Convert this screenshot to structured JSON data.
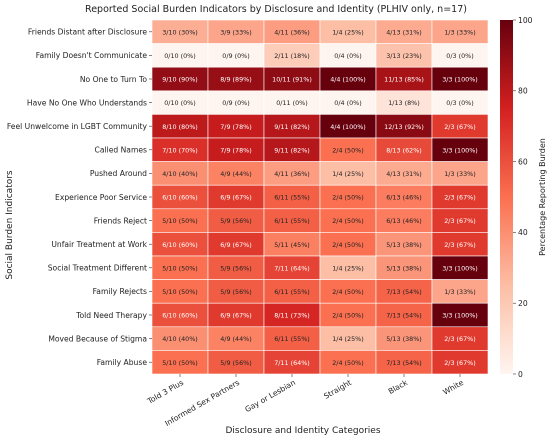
{
  "chart_data": {
    "type": "heatmap",
    "title": "Reported Social Burden Indicators by Disclosure and Identity (PLHIV only, n=17)",
    "xlabel": "Disclosure and Identity Categories",
    "ylabel": "Social Burden Indicators",
    "colorbar_label": "Percentage Reporting Burden",
    "colorbar_range": [
      0,
      100
    ],
    "colorbar_ticks": [
      "0",
      "20",
      "40",
      "60",
      "80",
      "100"
    ],
    "columns": [
      "Told 3 Plus",
      "Informed Sex Partners",
      "Gay or Lesbian",
      "Straight",
      "Black",
      "White"
    ],
    "rows": [
      "Friends Distant after Disclosure",
      "Family Doesn't Communicate",
      "No One to Turn To",
      "Have No One Who Understands",
      "Feel Unwelcome in LGBT Community",
      "Called Names",
      "Pushed Around",
      "Experience Poor Service",
      "Friends Reject",
      "Unfair Treatment at Work",
      "Social Treatment Different",
      "Family Rejects",
      "Told Need Therapy",
      "Moved Because of Stigma",
      "Family Abuse"
    ],
    "values": [
      [
        30,
        33,
        36,
        25,
        31,
        33
      ],
      [
        0,
        0,
        18,
        0,
        23,
        0
      ],
      [
        90,
        89,
        91,
        100,
        85,
        100
      ],
      [
        0,
        0,
        0,
        0,
        8,
        0
      ],
      [
        80,
        78,
        82,
        100,
        92,
        67
      ],
      [
        70,
        78,
        82,
        50,
        62,
        100
      ],
      [
        40,
        44,
        36,
        25,
        31,
        33
      ],
      [
        60,
        67,
        55,
        50,
        46,
        67
      ],
      [
        50,
        56,
        55,
        50,
        46,
        67
      ],
      [
        60,
        67,
        45,
        50,
        38,
        67
      ],
      [
        50,
        56,
        64,
        25,
        38,
        100
      ],
      [
        50,
        56,
        55,
        50,
        54,
        33
      ],
      [
        60,
        67,
        73,
        50,
        54,
        100
      ],
      [
        40,
        44,
        55,
        25,
        38,
        67
      ],
      [
        50,
        56,
        64,
        50,
        54,
        67
      ]
    ],
    "labels": [
      [
        "3/10 (30%)",
        "3/9 (33%)",
        "4/11 (36%)",
        "1/4 (25%)",
        "4/13 (31%)",
        "1/3 (33%)"
      ],
      [
        "0/10 (0%)",
        "0/9 (0%)",
        "2/11 (18%)",
        "0/4 (0%)",
        "3/13 (23%)",
        "0/3 (0%)"
      ],
      [
        "9/10 (90%)",
        "8/9 (89%)",
        "10/11 (91%)",
        "4/4 (100%)",
        "11/13 (85%)",
        "3/3 (100%)"
      ],
      [
        "0/10 (0%)",
        "0/9 (0%)",
        "0/11 (0%)",
        "0/4 (0%)",
        "1/13 (8%)",
        "0/3 (0%)"
      ],
      [
        "8/10 (80%)",
        "7/9 (78%)",
        "9/11 (82%)",
        "4/4 (100%)",
        "12/13 (92%)",
        "2/3 (67%)"
      ],
      [
        "7/10 (70%)",
        "7/9 (78%)",
        "9/11 (82%)",
        "2/4 (50%)",
        "8/13 (62%)",
        "3/3 (100%)"
      ],
      [
        "4/10 (40%)",
        "4/9 (44%)",
        "4/11 (36%)",
        "1/4 (25%)",
        "4/13 (31%)",
        "1/3 (33%)"
      ],
      [
        "6/10 (60%)",
        "6/9 (67%)",
        "6/11 (55%)",
        "2/4 (50%)",
        "6/13 (46%)",
        "2/3 (67%)"
      ],
      [
        "5/10 (50%)",
        "5/9 (56%)",
        "6/11 (55%)",
        "2/4 (50%)",
        "6/13 (46%)",
        "2/3 (67%)"
      ],
      [
        "6/10 (60%)",
        "6/9 (67%)",
        "5/11 (45%)",
        "2/4 (50%)",
        "5/13 (38%)",
        "2/3 (67%)"
      ],
      [
        "5/10 (50%)",
        "5/9 (56%)",
        "7/11 (64%)",
        "1/4 (25%)",
        "5/13 (38%)",
        "3/3 (100%)"
      ],
      [
        "5/10 (50%)",
        "5/9 (56%)",
        "6/11 (55%)",
        "2/4 (50%)",
        "7/13 (54%)",
        "1/3 (33%)"
      ],
      [
        "6/10 (60%)",
        "6/9 (67%)",
        "8/11 (73%)",
        "2/4 (50%)",
        "7/13 (54%)",
        "3/3 (100%)"
      ],
      [
        "4/10 (40%)",
        "4/9 (44%)",
        "6/11 (55%)",
        "1/4 (25%)",
        "5/13 (38%)",
        "2/3 (67%)"
      ],
      [
        "5/10 (50%)",
        "5/9 (56%)",
        "7/11 (64%)",
        "2/4 (50%)",
        "7/13 (54%)",
        "2/3 (67%)"
      ]
    ],
    "colormap": [
      "#fff5f0",
      "#fcbea5",
      "#fb7050",
      "#d32020",
      "#67000d"
    ]
  }
}
